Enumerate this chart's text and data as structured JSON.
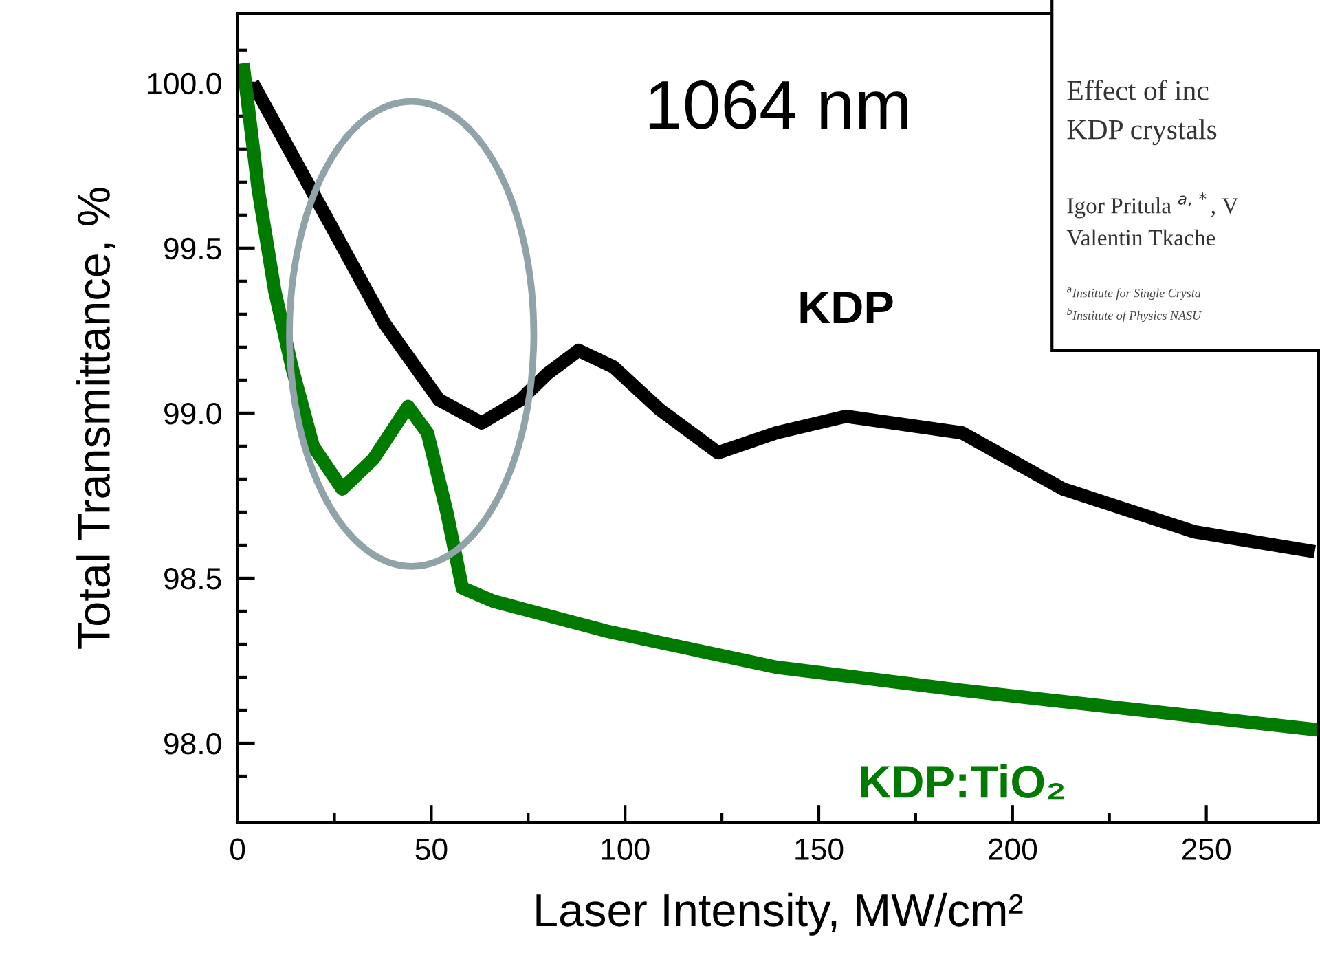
{
  "chart_data": {
    "type": "line",
    "xlabel": "Laser Intensity, MW/cm²",
    "ylabel": "Total Transmittance, %",
    "xlim": [
      0,
      279
    ],
    "ylim": [
      97.76,
      100.21
    ],
    "xticks": [
      0,
      {
        "value": 25,
        "label": null
      },
      50,
      {
        "value": 75,
        "label": null
      },
      100,
      {
        "value": 125,
        "label": null
      },
      150,
      {
        "value": 175,
        "label": null
      },
      200,
      {
        "value": 225,
        "label": null
      },
      250
    ],
    "yticks": [
      {
        "value": 97.9,
        "label": null
      },
      {
        "value": 98.0,
        "label": "98.0"
      },
      {
        "value": 98.1,
        "label": null
      },
      {
        "value": 98.2,
        "label": null
      },
      {
        "value": 98.3,
        "label": null
      },
      {
        "value": 98.4,
        "label": null
      },
      {
        "value": 98.5,
        "label": "98.5"
      },
      {
        "value": 98.6,
        "label": null
      },
      {
        "value": 98.7,
        "label": null
      },
      {
        "value": 98.8,
        "label": null
      },
      {
        "value": 98.9,
        "label": null
      },
      {
        "value": 99.0,
        "label": "99.0"
      },
      {
        "value": 99.1,
        "label": null
      },
      {
        "value": 99.2,
        "label": null
      },
      {
        "value": 99.3,
        "label": null
      },
      {
        "value": 99.4,
        "label": null
      },
      {
        "value": 99.5,
        "label": "99.5"
      },
      {
        "value": 99.6,
        "label": null
      },
      {
        "value": 99.7,
        "label": null
      },
      {
        "value": 99.8,
        "label": null
      },
      {
        "value": 99.9,
        "label": null
      },
      {
        "value": 100.0,
        "label": "100.0"
      },
      {
        "value": 100.1,
        "label": null
      }
    ],
    "grid": false,
    "legend": false,
    "marker": "none",
    "line_style": "solid",
    "annotations": [
      "1064 nm",
      "Effect of inc",
      "KDP crystals",
      "Igor Pritula $^{a,*}$, V",
      "Valentin Tkache",
      "$^{a}$Institute for Single Crysta",
      "$^{b}$Institute of Physics NASU"
    ],
    "series": [
      {
        "name": "KDP",
        "color": "#000000",
        "x": [
          3.9,
          24,
          38,
          52,
          63,
          73,
          80,
          88,
          97,
          109,
          124,
          139,
          157,
          187,
          213,
          247,
          278
        ],
        "values": [
          100.0,
          99.57,
          99.27,
          99.04,
          98.97,
          99.04,
          99.12,
          99.19,
          99.14,
          99.01,
          98.88,
          98.94,
          98.99,
          98.94,
          98.77,
          98.64,
          98.58
        ]
      },
      {
        "name": "KDP:TiO₂",
        "color": "#007a00",
        "x": [
          1.4,
          5.3,
          9.6,
          14,
          19.5,
          27,
          35,
          44,
          49,
          54,
          58,
          66,
          95,
          139,
          187,
          233,
          279
        ],
        "values": [
          100.06,
          99.68,
          99.37,
          99.14,
          98.9,
          98.77,
          98.86,
          99.02,
          98.94,
          98.7,
          98.47,
          98.43,
          98.34,
          98.23,
          98.16,
          98.1,
          98.04
        ]
      }
    ]
  }
}
